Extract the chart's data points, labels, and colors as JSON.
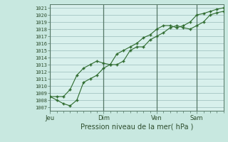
{
  "bg_color": "#c8e8e0",
  "plot_bg_color": "#d8f0ec",
  "grid_major_color": "#99bbbb",
  "grid_minor_color": "#ccdddd",
  "line_color": "#2d6a2d",
  "marker_color": "#2d6a2d",
  "vline_color": "#557766",
  "ylabel_ticks": [
    1007,
    1008,
    1009,
    1010,
    1011,
    1012,
    1013,
    1014,
    1015,
    1016,
    1017,
    1018,
    1019,
    1020,
    1021
  ],
  "ylim": [
    1006.5,
    1021.5
  ],
  "xlabel": "Pression niveau de la mer( hPa )",
  "xtick_labels": [
    "Jeu",
    "Dim",
    "Ven",
    "Sam"
  ],
  "xtick_pos": [
    0,
    48,
    96,
    132
  ],
  "total_steps": 156,
  "series1_x": [
    0,
    6,
    12,
    18,
    24,
    30,
    36,
    42,
    48,
    54,
    60,
    66,
    72,
    78,
    84,
    90,
    96,
    102,
    108,
    114,
    120,
    126,
    132,
    138,
    144,
    150,
    156
  ],
  "series1_y": [
    1008.5,
    1008.0,
    1007.5,
    1007.2,
    1008.0,
    1010.5,
    1011.0,
    1011.5,
    1012.5,
    1013.0,
    1013.0,
    1013.5,
    1015.0,
    1015.5,
    1015.5,
    1016.5,
    1017.0,
    1017.5,
    1018.2,
    1018.5,
    1018.2,
    1018.0,
    1018.5,
    1019.0,
    1020.0,
    1020.3,
    1020.5
  ],
  "series2_x": [
    0,
    6,
    12,
    18,
    24,
    30,
    36,
    42,
    48,
    54,
    60,
    66,
    72,
    78,
    84,
    90,
    96,
    102,
    108,
    114,
    120,
    126,
    132,
    138,
    144,
    150,
    156
  ],
  "series2_y": [
    1008.5,
    1008.5,
    1008.5,
    1009.5,
    1011.5,
    1012.5,
    1013.0,
    1013.5,
    1013.2,
    1013.0,
    1014.5,
    1015.0,
    1015.5,
    1016.0,
    1016.8,
    1017.2,
    1018.0,
    1018.5,
    1018.5,
    1018.2,
    1018.5,
    1019.0,
    1020.0,
    1020.2,
    1020.5,
    1020.8,
    1021.0
  ]
}
